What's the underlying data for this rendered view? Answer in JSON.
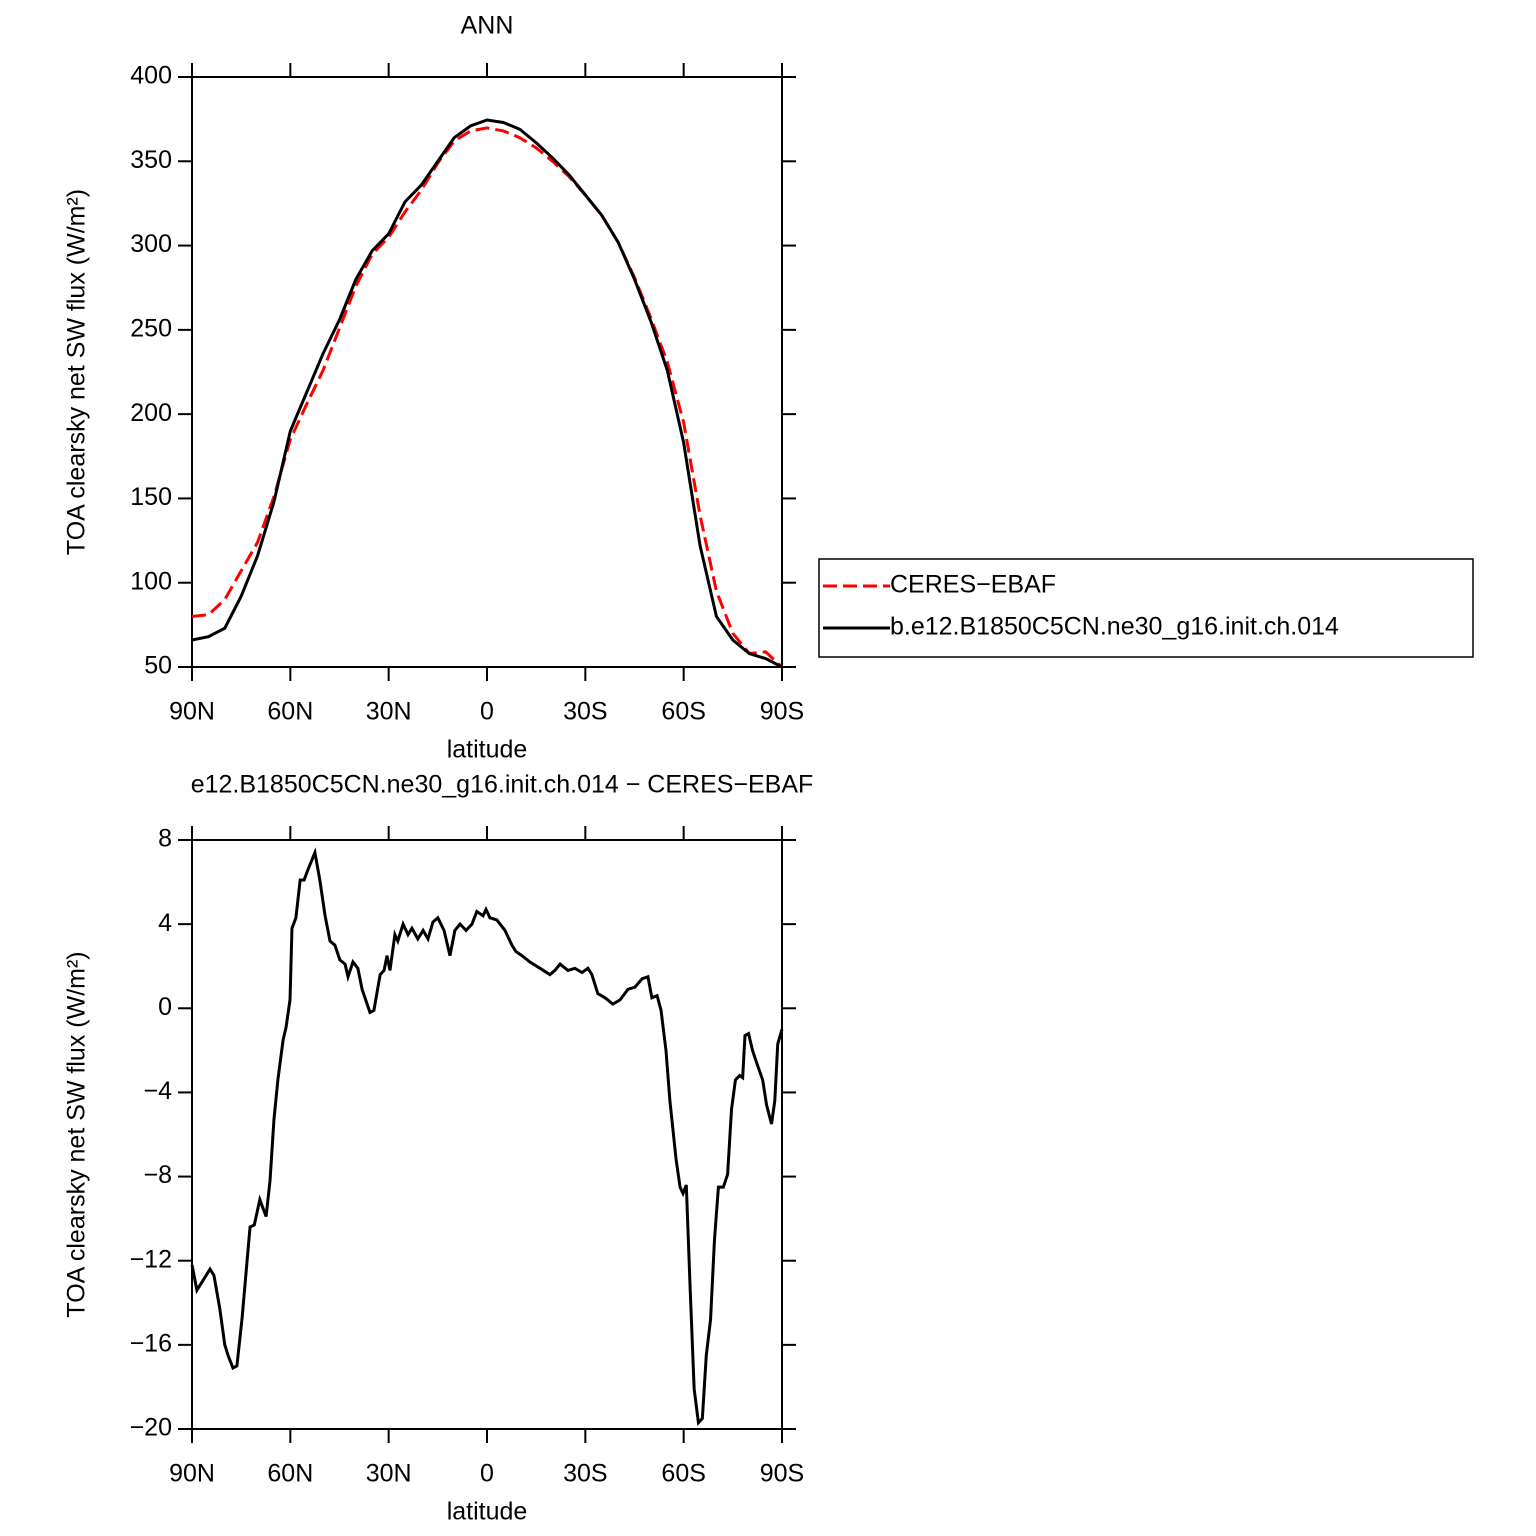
{
  "chart_data": [
    {
      "type": "line",
      "title": "ANN",
      "x_label": "latitude",
      "y_label": "TOA clearsky net SW flux (W/m²)",
      "x": [
        90,
        85,
        80,
        75,
        70,
        65,
        60,
        55,
        50,
        45,
        40,
        35,
        30,
        25,
        20,
        15,
        10,
        5,
        0,
        -5,
        -10,
        -15,
        -20,
        -25,
        -30,
        -35,
        -40,
        -45,
        -50,
        -55,
        -60,
        -65,
        -70,
        -75,
        -80,
        -85,
        -90
      ],
      "series": [
        {
          "name": "CERES−EBAF",
          "color": "#ff0000",
          "dash": "dashed",
          "values": [
            80,
            81,
            90,
            107,
            124,
            151,
            185,
            206,
            226,
            251,
            276,
            295,
            305,
            320,
            333,
            349,
            362,
            368,
            369.8,
            368,
            364,
            358,
            350,
            341,
            330,
            318,
            302,
            281,
            257,
            231,
            195,
            140,
            95,
            70,
            58,
            59,
            50
          ]
        },
        {
          "name": "b.e12.B1850C5CN.ne30_g16.init.ch.014",
          "color": "#000000",
          "dash": "solid",
          "values": [
            66,
            68,
            73,
            92,
            116,
            148,
            190,
            213,
            236,
            256,
            280,
            297,
            307,
            326,
            336,
            350,
            364,
            371,
            374.5,
            373,
            369,
            361,
            352,
            342,
            330,
            318,
            302,
            280,
            255,
            226,
            183,
            122,
            80,
            66,
            58,
            55,
            50
          ]
        }
      ],
      "xlim": [
        90,
        -90
      ],
      "xticks": [
        {
          "value": 90,
          "label": "90N"
        },
        {
          "value": 60,
          "label": "60N"
        },
        {
          "value": 30,
          "label": "30N"
        },
        0,
        {
          "value": -30,
          "label": "30S"
        },
        {
          "value": -60,
          "label": "60S"
        },
        {
          "value": -90,
          "label": "90S"
        }
      ],
      "ylim": [
        50,
        400
      ],
      "yticks": [
        50,
        100,
        150,
        200,
        250,
        300,
        350,
        400
      ]
    },
    {
      "type": "line",
      "title": "e12.B1850C5CN.ne30_g16.init.ch.014 − CERES−EBAF",
      "x_label": "latitude",
      "y_label": "TOA clearsky net SW flux (W/m²)",
      "x": [
        90,
        88.5,
        84.5,
        83.3,
        81.5,
        80,
        79,
        77.5,
        76.3,
        74.7,
        72.3,
        71,
        69.3,
        67.4,
        66.2,
        65,
        63.8,
        62.2,
        61.3,
        60.1,
        59.5,
        58.3,
        57,
        55.8,
        54.6,
        52.5,
        51,
        49.4,
        47.9,
        46.4,
        44.9,
        43.3,
        42.4,
        40.9,
        39.4,
        38.1,
        35.7,
        34.5,
        32.6,
        31.4,
        30.5,
        29.6,
        28.1,
        27.2,
        25.6,
        24.1,
        22.9,
        21.1,
        19.5,
        18,
        16.5,
        15,
        13.1,
        11.3,
        9.8,
        8.2,
        6.4,
        4.6,
        3.1,
        1.2,
        0.3,
        -0.9,
        -3,
        -5.5,
        -7.6,
        -8.8,
        -10.7,
        -13.1,
        -16.2,
        -19.2,
        -20.7,
        -22.3,
        -24.7,
        -26.8,
        -29,
        -30.8,
        -32,
        -33.8,
        -36,
        -38.4,
        -40.6,
        -43,
        -45.1,
        -47.3,
        -49.1,
        -50.3,
        -51.9,
        -53.1,
        -54.6,
        -55.8,
        -57.7,
        -58.9,
        -59.8,
        -60.8,
        -62,
        -63.2,
        -64.5,
        -65.7,
        -66.9,
        -68.2,
        -69.4,
        -70.6,
        -72.1,
        -73.4,
        -74.6,
        -75.8,
        -77.1,
        -78,
        -78.7,
        -79.8,
        -81,
        -82.5,
        -84.1,
        -85.3,
        -86.8,
        -87.8,
        -88.7,
        -90
      ],
      "values": [
        -12.2,
        -13.4,
        -12.4,
        -12.7,
        -14.3,
        -16,
        -16.5,
        -17.1,
        -17,
        -14.7,
        -10.4,
        -10.3,
        -9.1,
        -9.9,
        -8.2,
        -5.3,
        -3.4,
        -1.5,
        -0.9,
        0.4,
        3.8,
        4.3,
        6.1,
        6.1,
        6.6,
        7.4,
        6.1,
        4.4,
        3.2,
        3,
        2.3,
        2.1,
        1.5,
        2.2,
        1.9,
        0.9,
        -0.2,
        -0.1,
        1.6,
        1.8,
        2.5,
        1.8,
        3.5,
        3.2,
        4,
        3.5,
        3.8,
        3.3,
        3.7,
        3.3,
        4.1,
        4.3,
        3.7,
        2.5,
        3.7,
        4,
        3.7,
        4,
        4.6,
        4.4,
        4.7,
        4.3,
        4.2,
        3.7,
        3,
        2.7,
        2.5,
        2.2,
        1.9,
        1.6,
        1.8,
        2.1,
        1.8,
        1.9,
        1.7,
        1.9,
        1.6,
        0.7,
        0.5,
        0.2,
        0.4,
        0.9,
        1,
        1.4,
        1.5,
        0.5,
        0.6,
        -0.1,
        -2,
        -4.4,
        -7.2,
        -8.5,
        -8.8,
        -8.4,
        -13.4,
        -18.1,
        -19.7,
        -19.5,
        -16.5,
        -14.8,
        -11,
        -8.5,
        -8.5,
        -7.9,
        -4.8,
        -3.4,
        -3.2,
        -3.3,
        -1.3,
        -1.2,
        -2,
        -2.7,
        -3.4,
        -4.6,
        -5.5,
        -4.4,
        -1.7,
        -1
      ],
      "color": "#000000",
      "xlim": [
        90,
        -90
      ],
      "xticks": [
        {
          "value": 90,
          "label": "90N"
        },
        {
          "value": 60,
          "label": "60N"
        },
        {
          "value": 30,
          "label": "30N"
        },
        0,
        {
          "value": -30,
          "label": "30S"
        },
        {
          "value": -60,
          "label": "60S"
        },
        {
          "value": -90,
          "label": "90S"
        }
      ],
      "ylim": [
        -20,
        8
      ],
      "yticks": [
        {
          "value": -20,
          "label": "−20"
        },
        {
          "value": -16,
          "label": "−16"
        },
        {
          "value": -12,
          "label": "−12"
        },
        {
          "value": -8,
          "label": "−8"
        },
        {
          "value": -4,
          "label": "−4"
        },
        0,
        4,
        8
      ]
    }
  ]
}
